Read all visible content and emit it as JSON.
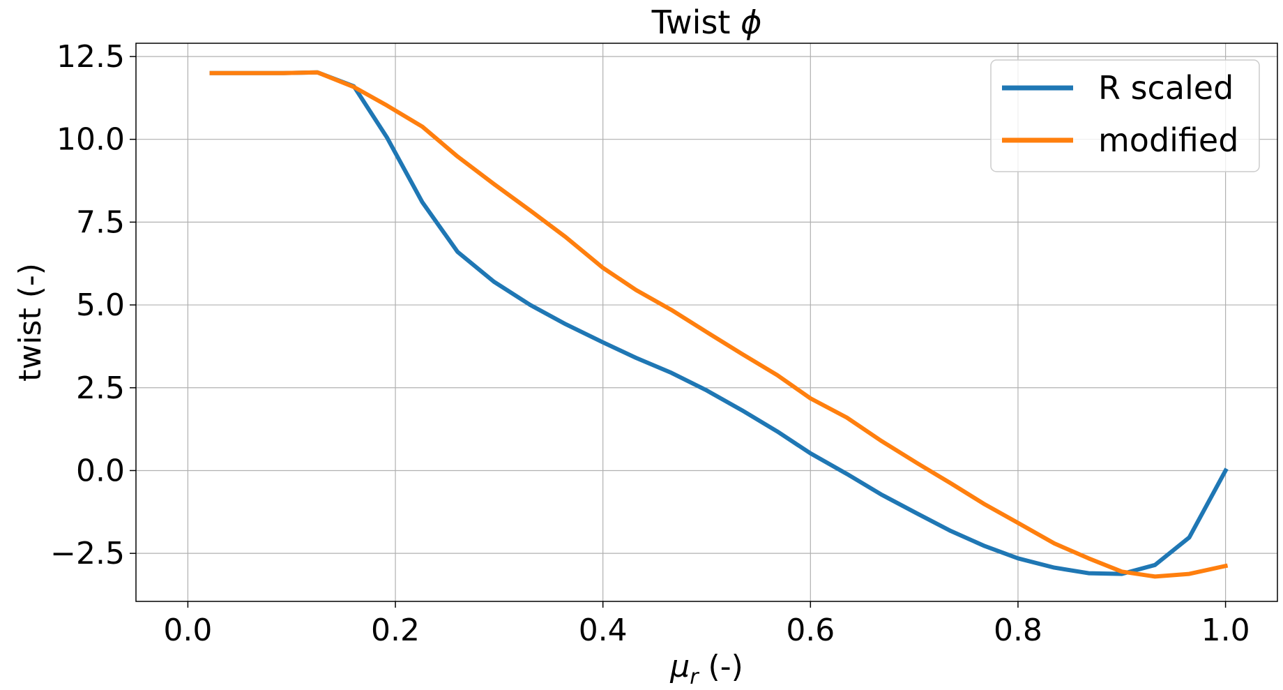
{
  "chart_data": {
    "type": "line",
    "title_main": "Twist ",
    "title_symbol": "ϕ",
    "xlabel_symbol": "μ",
    "xlabel_subscript": "r",
    "xlabel_suffix": " (-)",
    "ylabel": "twist (-)",
    "xlim": [
      -0.05,
      1.05
    ],
    "ylim": [
      -3.95,
      12.9
    ],
    "xticks": [
      0.0,
      0.2,
      0.4,
      0.6,
      0.8,
      1.0
    ],
    "xtick_labels": [
      "0.0",
      "0.2",
      "0.4",
      "0.6",
      "0.8",
      "1.0"
    ],
    "yticks": [
      12.5,
      10.0,
      7.5,
      5.0,
      2.5,
      0.0,
      -2.5
    ],
    "ytick_labels": [
      "12.5",
      "10.0",
      "7.5",
      "5.0",
      "2.5",
      "0.0",
      "−2.5"
    ],
    "grid": true,
    "legend_position": "top-right",
    "series": [
      {
        "name": "R scaled",
        "color": "#1f77b4",
        "x": [
          0.023,
          0.058,
          0.092,
          0.125,
          0.16,
          0.192,
          0.226,
          0.26,
          0.295,
          0.33,
          0.364,
          0.4,
          0.432,
          0.466,
          0.5,
          0.534,
          0.568,
          0.6,
          0.635,
          0.668,
          0.703,
          0.735,
          0.768,
          0.8,
          0.835,
          0.868,
          0.9,
          0.932,
          0.965,
          1.0
        ],
        "y": [
          12.0,
          12.0,
          12.0,
          12.02,
          11.6,
          10.05,
          8.1,
          6.6,
          5.7,
          5.0,
          4.42,
          3.87,
          3.4,
          2.95,
          2.42,
          1.82,
          1.18,
          0.52,
          -0.1,
          -0.72,
          -1.3,
          -1.82,
          -2.28,
          -2.65,
          -2.93,
          -3.1,
          -3.12,
          -2.85,
          -2.02,
          0.0
        ]
      },
      {
        "name": "modified",
        "color": "#ff7f0e",
        "x": [
          0.023,
          0.058,
          0.092,
          0.125,
          0.16,
          0.192,
          0.226,
          0.26,
          0.295,
          0.33,
          0.364,
          0.4,
          0.432,
          0.466,
          0.5,
          0.534,
          0.568,
          0.6,
          0.635,
          0.668,
          0.703,
          0.735,
          0.768,
          0.8,
          0.835,
          0.868,
          0.9,
          0.932,
          0.965,
          1.0
        ],
        "y": [
          12.0,
          12.0,
          12.0,
          12.02,
          11.58,
          11.02,
          10.38,
          9.48,
          8.65,
          7.85,
          7.05,
          6.12,
          5.45,
          4.85,
          4.18,
          3.52,
          2.88,
          2.18,
          1.6,
          0.9,
          0.22,
          -0.38,
          -1.02,
          -1.58,
          -2.2,
          -2.65,
          -3.05,
          -3.2,
          -3.12,
          -2.88
        ]
      }
    ]
  }
}
